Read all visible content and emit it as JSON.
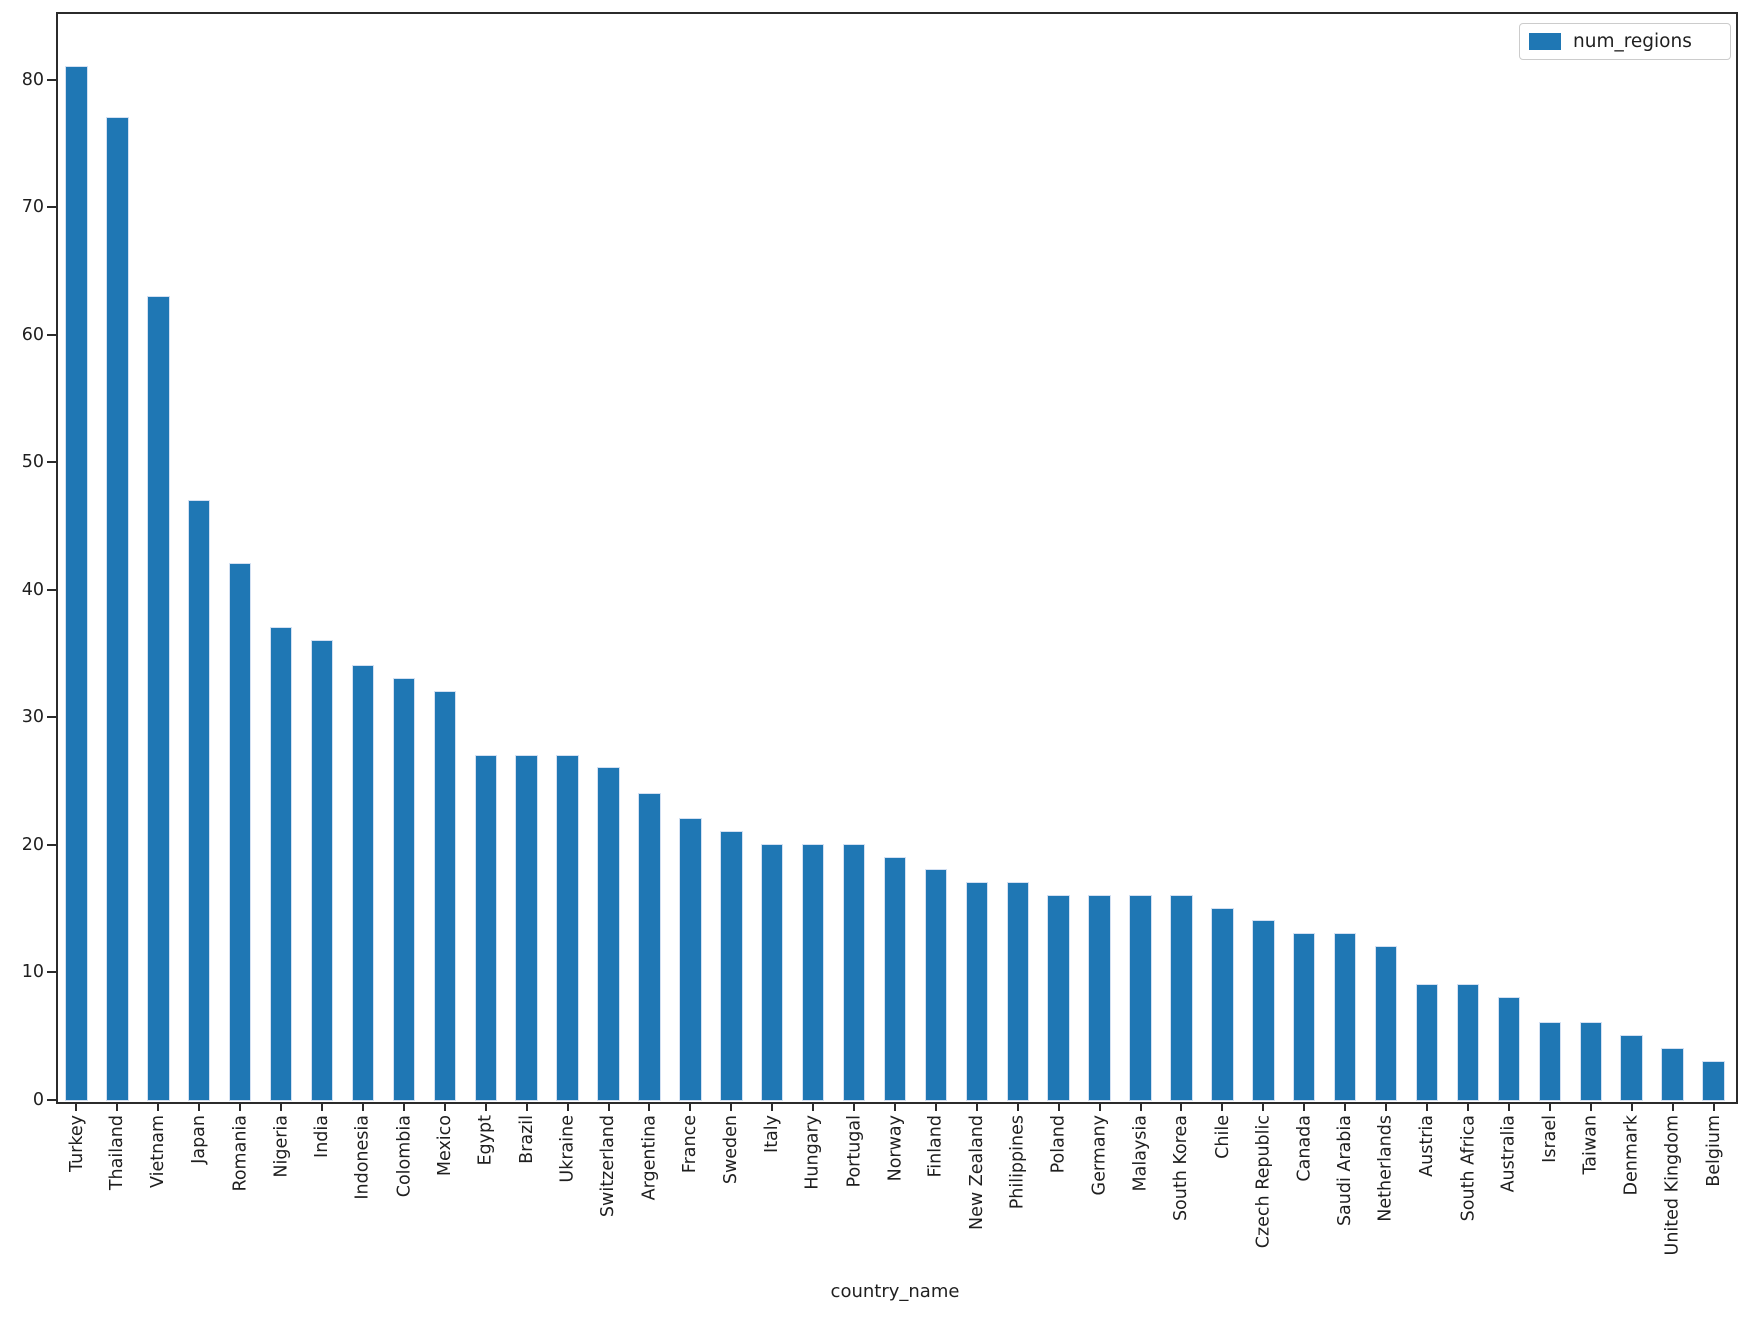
{
  "chart_data": {
    "type": "bar",
    "title": "",
    "xlabel": "country_name",
    "ylabel": "",
    "legend_label": "num_regions",
    "legend_position": "upper right",
    "bar_color": "#1f77b4",
    "axis_color": "#2b2b2b",
    "grid": false,
    "ylim": [
      0,
      85.33
    ],
    "yticks": [
      0,
      10,
      20,
      30,
      40,
      50,
      60,
      70,
      80
    ],
    "categories": [
      "Turkey",
      "Thailand",
      "Vietnam",
      "Japan",
      "Romania",
      "Nigeria",
      "India",
      "Indonesia",
      "Colombia",
      "Mexico",
      "Egypt",
      "Brazil",
      "Ukraine",
      "Switzerland",
      "Argentina",
      "France",
      "Sweden",
      "Italy",
      "Hungary",
      "Portugal",
      "Norway",
      "Finland",
      "New Zealand",
      "Philippines",
      "Poland",
      "Germany",
      "Malaysia",
      "South Korea",
      "Chile",
      "Czech Republic",
      "Canada",
      "Saudi Arabia",
      "Netherlands",
      "Austria",
      "South Africa",
      "Australia",
      "Israel",
      "Taiwan",
      "Denmark",
      "United Kingdom",
      "Belgium"
    ],
    "values": [
      81,
      77,
      63,
      47,
      42,
      37,
      36,
      34,
      33,
      32,
      27,
      27,
      27,
      26,
      24,
      22,
      21,
      20,
      20,
      20,
      19,
      18,
      17,
      17,
      16,
      16,
      16,
      16,
      15,
      14,
      13,
      13,
      12,
      9,
      9,
      8,
      6,
      6,
      5,
      4,
      3
    ]
  }
}
